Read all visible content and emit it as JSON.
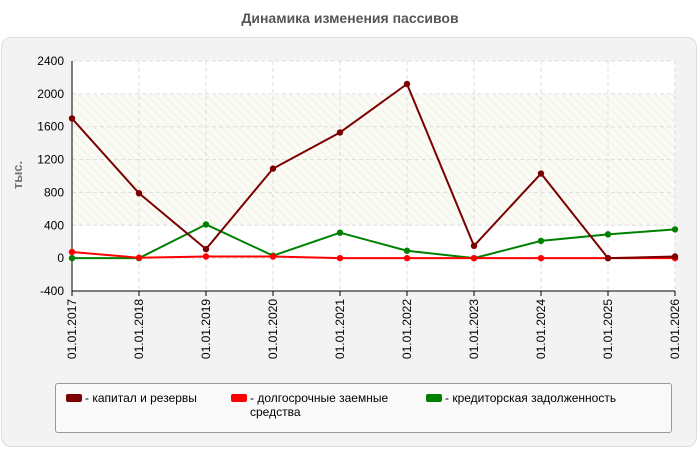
{
  "chart_data": {
    "type": "line",
    "title": "Динамика изменения пассивов",
    "ylabel": "тыс.",
    "xlabel": "",
    "ylim": [
      -400,
      2400
    ],
    "yticks": [
      -400,
      0,
      400,
      800,
      1200,
      1600,
      2000,
      2400
    ],
    "categories": [
      "01.01.2017",
      "01.01.2018",
      "01.01.2019",
      "01.01.2020",
      "01.01.2021",
      "01.01.2022",
      "01.01.2023",
      "01.01.2024",
      "01.01.2025",
      "01.01.2026"
    ],
    "grid": true,
    "legend_position": "bottom",
    "series": [
      {
        "name": "- капитал и резервы",
        "color": "#7b0000",
        "values": [
          1700,
          790,
          110,
          1090,
          1530,
          2120,
          150,
          1030,
          0,
          20
        ]
      },
      {
        "name": "- долгосрочные заемные средства",
        "color": "#ff0000",
        "values": [
          75,
          5,
          20,
          20,
          0,
          0,
          0,
          0,
          0,
          0
        ]
      },
      {
        "name": "- кредиторская задолженность",
        "color": "#008000",
        "values": [
          0,
          0,
          410,
          30,
          310,
          90,
          0,
          210,
          290,
          350
        ]
      }
    ]
  }
}
